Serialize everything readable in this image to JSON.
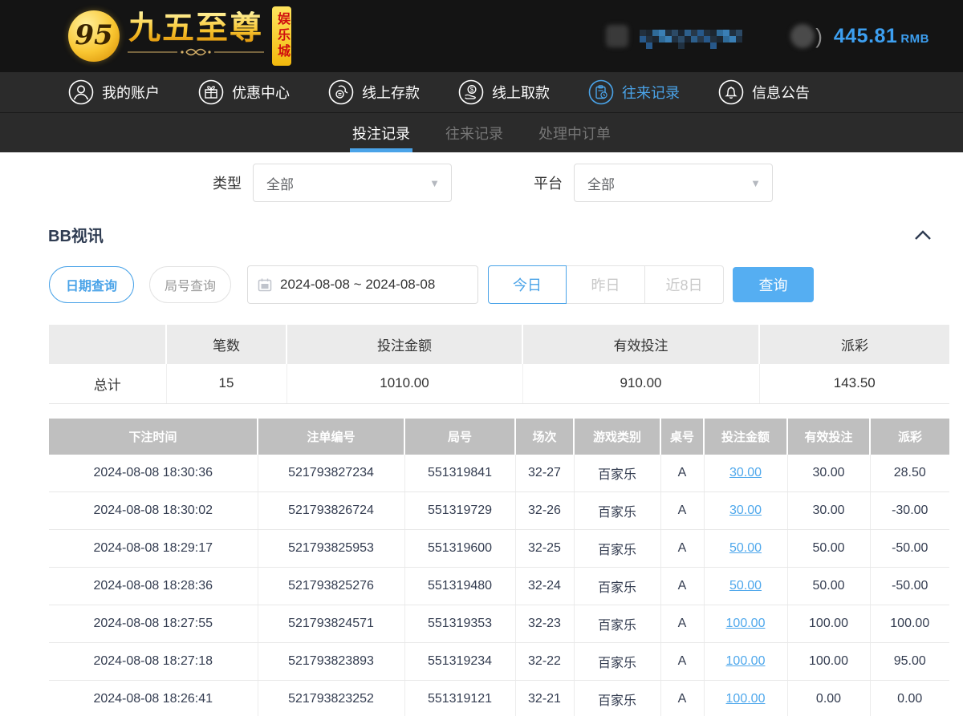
{
  "header": {
    "logo": {
      "monogram": "95",
      "brand": "九五至尊",
      "badge": "娱乐城"
    },
    "balance": {
      "amount": "445.81",
      "currency": "RMB"
    }
  },
  "nav": {
    "items": [
      {
        "label": "我的账户",
        "icon": "user-icon",
        "active": false
      },
      {
        "label": "优惠中心",
        "icon": "gift-icon",
        "active": false
      },
      {
        "label": "线上存款",
        "icon": "deposit-icon",
        "active": false
      },
      {
        "label": "线上取款",
        "icon": "withdraw-icon",
        "active": false
      },
      {
        "label": "往来记录",
        "icon": "records-icon",
        "active": true
      },
      {
        "label": "信息公告",
        "icon": "announcement-bell-icon",
        "active": false
      }
    ]
  },
  "subnav": {
    "tabs": [
      {
        "label": "投注记录",
        "active": true
      },
      {
        "label": "往来记录",
        "active": false
      },
      {
        "label": "处理中订单",
        "active": false
      }
    ]
  },
  "filters": {
    "type_label": "类型",
    "type_value": "全部",
    "platform_label": "平台",
    "platform_value": "全部"
  },
  "section": {
    "title": "BB视讯"
  },
  "query": {
    "date_query_label": "日期查询",
    "round_query_label": "局号查询",
    "date_range": "2024-08-08 ~ 2024-08-08",
    "quick_buttons": [
      {
        "label": "今日",
        "active": true
      },
      {
        "label": "昨日",
        "active": false
      },
      {
        "label": "近8日",
        "active": false
      }
    ],
    "search_label": "查询"
  },
  "summary": {
    "headers": [
      "",
      "笔数",
      "投注金额",
      "有效投注",
      "派彩"
    ],
    "total_row": [
      "总计",
      "15",
      "1010.00",
      "910.00",
      "143.50"
    ]
  },
  "table": {
    "headers": [
      "下注时间",
      "注单编号",
      "局号",
      "场次",
      "游戏类别",
      "桌号",
      "投注金额",
      "有效投注",
      "派彩"
    ],
    "rows": [
      [
        "2024-08-08 18:30:36",
        "521793827234",
        "551319841",
        "32-27",
        "百家乐",
        "A",
        "30.00",
        "30.00",
        "28.50"
      ],
      [
        "2024-08-08 18:30:02",
        "521793826724",
        "551319729",
        "32-26",
        "百家乐",
        "A",
        "30.00",
        "30.00",
        "-30.00"
      ],
      [
        "2024-08-08 18:29:17",
        "521793825953",
        "551319600",
        "32-25",
        "百家乐",
        "A",
        "50.00",
        "50.00",
        "-50.00"
      ],
      [
        "2024-08-08 18:28:36",
        "521793825276",
        "551319480",
        "32-24",
        "百家乐",
        "A",
        "50.00",
        "50.00",
        "-50.00"
      ],
      [
        "2024-08-08 18:27:55",
        "521793824571",
        "551319353",
        "32-23",
        "百家乐",
        "A",
        "100.00",
        "100.00",
        "100.00"
      ],
      [
        "2024-08-08 18:27:18",
        "521793823893",
        "551319234",
        "32-22",
        "百家乐",
        "A",
        "100.00",
        "100.00",
        "95.00"
      ],
      [
        "2024-08-08 18:26:41",
        "521793823252",
        "551319121",
        "32-21",
        "百家乐",
        "A",
        "100.00",
        "0.00",
        "0.00"
      ]
    ]
  },
  "colors": {
    "accent_blue": "#4aa3e8",
    "balance_blue": "#3d9ff0",
    "negative_red": "#f05050",
    "search_button_blue": "#55aef2",
    "table_header_gray": "#bfbfbf",
    "gold": "#f9c631"
  }
}
